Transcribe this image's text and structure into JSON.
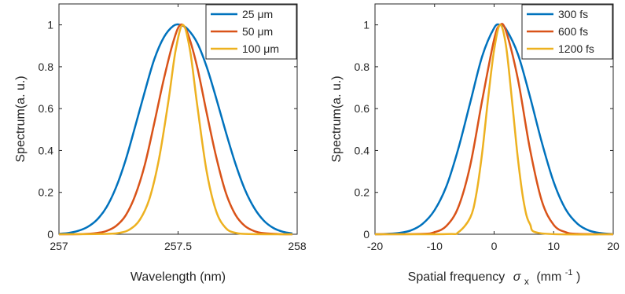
{
  "chart_data": [
    {
      "type": "line",
      "xlabel": "Wavelength (nm)",
      "ylabel": "Spectrum(a. u.)",
      "xlim": [
        257,
        258
      ],
      "ylim": [
        0,
        1.1
      ],
      "xticks": [
        257,
        257.5,
        258
      ],
      "xtick_labels": [
        "257",
        "257.5",
        "258"
      ],
      "yticks": [
        0,
        0.2,
        0.4,
        0.6,
        0.8,
        1
      ],
      "ytick_labels": [
        "0",
        "0.2",
        "0.4",
        "0.6",
        "0.8",
        "1"
      ],
      "legend_position": "top-right",
      "series": [
        {
          "name": "25 μm",
          "color": "#0072BD",
          "x": [
            257.0,
            257.04,
            257.08,
            257.12,
            257.16,
            257.2,
            257.24,
            257.28,
            257.32,
            257.36,
            257.4,
            257.44,
            257.48,
            257.51,
            257.54,
            257.58,
            257.62,
            257.66,
            257.7,
            257.74,
            257.78,
            257.82,
            257.86,
            257.9,
            257.94,
            257.98
          ],
          "y": [
            0.002,
            0.006,
            0.016,
            0.035,
            0.07,
            0.13,
            0.225,
            0.355,
            0.515,
            0.68,
            0.835,
            0.94,
            0.995,
            1.0,
            0.98,
            0.915,
            0.8,
            0.65,
            0.49,
            0.34,
            0.215,
            0.125,
            0.065,
            0.03,
            0.012,
            0.004
          ]
        },
        {
          "name": "50 μm",
          "color": "#D95319",
          "x": [
            257.0,
            257.1,
            257.16,
            257.2,
            257.24,
            257.28,
            257.32,
            257.36,
            257.4,
            257.44,
            257.48,
            257.51,
            257.54,
            257.58,
            257.62,
            257.66,
            257.7,
            257.74,
            257.78,
            257.82,
            257.86,
            257.92,
            257.98
          ],
          "y": [
            0.0,
            0.001,
            0.006,
            0.016,
            0.04,
            0.09,
            0.185,
            0.33,
            0.53,
            0.74,
            0.92,
            1.0,
            0.96,
            0.8,
            0.58,
            0.37,
            0.2,
            0.095,
            0.04,
            0.015,
            0.005,
            0.001,
            0.0
          ]
        },
        {
          "name": "100 μm",
          "color": "#EDB120",
          "x": [
            257.0,
            257.2,
            257.26,
            257.3,
            257.34,
            257.38,
            257.42,
            257.46,
            257.49,
            257.52,
            257.55,
            257.58,
            257.62,
            257.66,
            257.7,
            257.74,
            257.8,
            257.98
          ],
          "y": [
            0.0,
            0.002,
            0.008,
            0.025,
            0.07,
            0.17,
            0.36,
            0.64,
            0.88,
            1.0,
            0.88,
            0.62,
            0.3,
            0.11,
            0.03,
            0.007,
            0.001,
            0.0
          ]
        }
      ]
    },
    {
      "type": "line",
      "xlabel": "Spatial frequency",
      "xlabel_symbol": "σ",
      "xlabel_subscript": "x",
      "xlabel_units": "(mm",
      "xlabel_units_exp": "-1",
      "xlabel_units_close": ")",
      "ylabel": "Spectrum(a. u.)",
      "xlim": [
        -20,
        20
      ],
      "ylim": [
        0,
        1.1
      ],
      "xticks": [
        -20,
        -10,
        0,
        10,
        20
      ],
      "xtick_labels": [
        "-20",
        "-10",
        "0",
        "10",
        "20"
      ],
      "yticks": [
        0,
        0.2,
        0.4,
        0.6,
        0.8,
        1
      ],
      "ytick_labels": [
        "0",
        "0.2",
        "0.4",
        "0.6",
        "0.8",
        "1"
      ],
      "legend_position": "top-right",
      "series": [
        {
          "name": "300 fs",
          "color": "#0072BD",
          "x": [
            -20,
            -18,
            -16,
            -14,
            -12,
            -10,
            -8,
            -6,
            -4,
            -2,
            0,
            1,
            2,
            4,
            6,
            8,
            10,
            12,
            14,
            16,
            18,
            20
          ],
          "y": [
            0.0,
            0.002,
            0.006,
            0.018,
            0.05,
            0.115,
            0.23,
            0.41,
            0.63,
            0.85,
            0.985,
            1.0,
            0.98,
            0.86,
            0.66,
            0.44,
            0.25,
            0.12,
            0.05,
            0.017,
            0.005,
            0.001
          ]
        },
        {
          "name": "600 fs",
          "color": "#D95319",
          "x": [
            -20,
            -12,
            -10,
            -8,
            -6,
            -4,
            -2,
            0,
            1,
            2,
            4,
            6,
            8,
            10,
            12,
            14,
            20
          ],
          "y": [
            0.0,
            0.002,
            0.01,
            0.04,
            0.13,
            0.33,
            0.64,
            0.93,
            1.0,
            0.97,
            0.74,
            0.41,
            0.16,
            0.045,
            0.01,
            0.002,
            0.0
          ]
        },
        {
          "name": "1200 fs",
          "color": "#EDB120",
          "x": [
            -20,
            -8,
            -6,
            -4,
            -3,
            -2,
            -1,
            0,
            1,
            2,
            3,
            4,
            5,
            6,
            8,
            20
          ],
          "y": [
            0.0,
            0.001,
            0.01,
            0.08,
            0.19,
            0.39,
            0.65,
            0.88,
            1.0,
            0.9,
            0.64,
            0.36,
            0.15,
            0.05,
            0.004,
            0.0
          ]
        }
      ]
    }
  ]
}
